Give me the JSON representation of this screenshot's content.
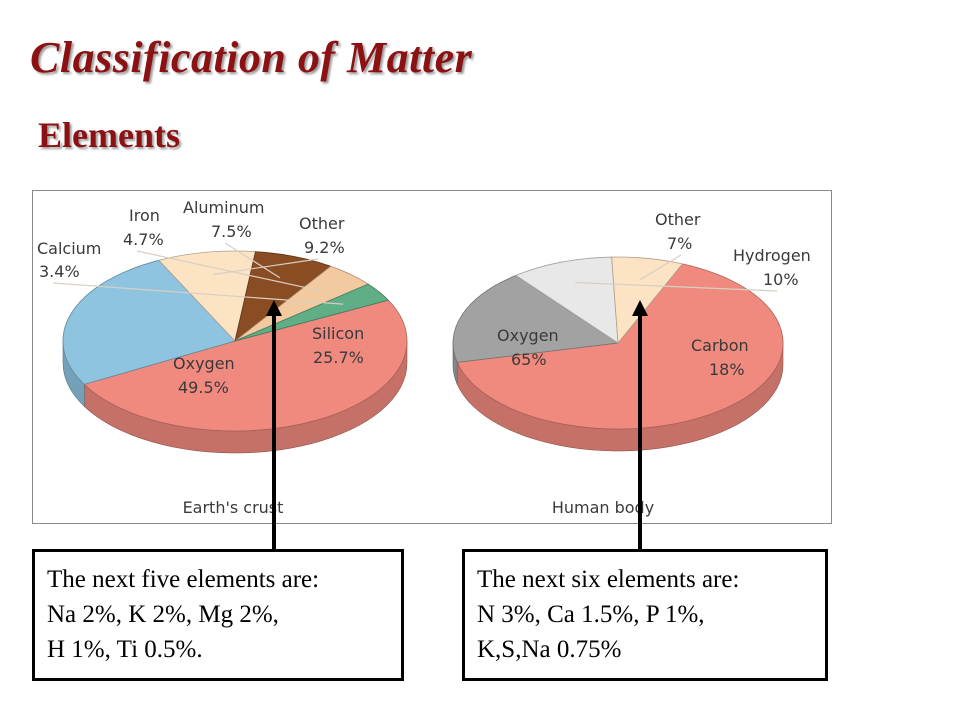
{
  "title": "Classification of Matter",
  "subtitle": "Elements",
  "colors": {
    "title": "#8b1113",
    "oxygen": "#f08a7e",
    "silicon": "#8fc4e0",
    "aluminum": "#8a4c22",
    "iron": "#f3c9a0",
    "calcium": "#5fae85",
    "other": "#fbe3c4",
    "hydrogen": "#e8e8e8",
    "carbon": "#a2a2a2"
  },
  "chart_data": [
    {
      "type": "pie",
      "xlabel": "Earth's crust",
      "slices": [
        {
          "name": "Oxygen",
          "value": 49.5,
          "label": "49.5%",
          "color_key": "oxygen"
        },
        {
          "name": "Silicon",
          "value": 25.7,
          "label": "25.7%",
          "color_key": "silicon"
        },
        {
          "name": "Other",
          "value": 9.2,
          "label": "9.2%",
          "color_key": "other"
        },
        {
          "name": "Aluminum",
          "value": 7.5,
          "label": "7.5%",
          "color_key": "aluminum"
        },
        {
          "name": "Iron",
          "value": 4.7,
          "label": "4.7%",
          "color_key": "iron"
        },
        {
          "name": "Calcium",
          "value": 3.4,
          "label": "3.4%",
          "color_key": "calcium"
        }
      ]
    },
    {
      "type": "pie",
      "xlabel": "Human body",
      "slices": [
        {
          "name": "Oxygen",
          "value": 65,
          "label": "65%",
          "color_key": "oxygen"
        },
        {
          "name": "Carbon",
          "value": 18,
          "label": "18%",
          "color_key": "carbon"
        },
        {
          "name": "Hydrogen",
          "value": 10,
          "label": "10%",
          "color_key": "hydrogen"
        },
        {
          "name": "Other",
          "value": 7,
          "label": "7%",
          "color_key": "other"
        }
      ]
    }
  ],
  "notes": {
    "crust": {
      "line1": "The next five elements are:",
      "line2": "Na 2%, K 2%, Mg 2%,",
      "line3": "H 1%, Ti 0.5%."
    },
    "body": {
      "line1": "The next six elements are:",
      "line2": "N 3%, Ca 1.5%, P 1%,",
      "line3": "K,S,Na 0.75%"
    }
  }
}
